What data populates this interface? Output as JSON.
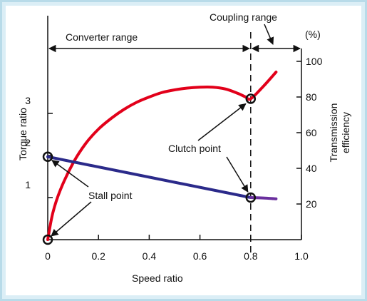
{
  "colors": {
    "background": "#dbeef6",
    "plot_background": "#ffffff",
    "border": "#b8dbe9",
    "efficiency_curve": "#e2001a",
    "torque_curve": "#2b2a8a",
    "coupling_torque": "#6a2f9e",
    "axis": "#111111"
  },
  "chart_data": {
    "type": "line",
    "xlabel": "Speed ratio",
    "ylabel_left": "Torque ratio",
    "ylabel_right": [
      "Transmission",
      "efficiency"
    ],
    "right_unit": "(%)",
    "xlim": [
      0,
      1.0
    ],
    "ylim_left": [
      0,
      3.7
    ],
    "ylim_right": [
      0,
      115
    ],
    "x_ticks": [
      "0",
      "0.2",
      "0.4",
      "0.6",
      "0.8",
      "1.0"
    ],
    "left_ticks": [
      "1",
      "2",
      "3"
    ],
    "right_ticks": [
      "20",
      "40",
      "60",
      "80",
      "100"
    ],
    "grid": false,
    "series": [
      {
        "axis": "right",
        "x": [
          0,
          0.02,
          0.05,
          0.1,
          0.15,
          0.2,
          0.25,
          0.3,
          0.35,
          0.4,
          0.45,
          0.5,
          0.55,
          0.6,
          0.65,
          0.7,
          0.75,
          0.78,
          0.8,
          0.85,
          0.9
        ],
        "values": [
          0,
          15,
          28,
          43,
          54,
          62,
          68,
          73,
          77,
          80,
          82.5,
          84,
          85,
          85.5,
          85.5,
          84.5,
          82,
          80,
          79,
          86,
          94
        ]
      },
      {
        "axis": "left",
        "x": [
          0,
          0.8
        ],
        "values": [
          1.97,
          1.0
        ]
      },
      {
        "axis": "left",
        "x": [
          0.8,
          0.85,
          0.9
        ],
        "values": [
          1.0,
          0.99,
          0.97
        ]
      }
    ],
    "markers": [
      {
        "x": 0,
        "value": 0,
        "axis": "left"
      },
      {
        "x": 0,
        "value": 1.97,
        "axis": "left"
      },
      {
        "x": 0.8,
        "value": 1.0,
        "axis": "left"
      },
      {
        "x": 0.8,
        "value": 79,
        "axis": "right"
      }
    ],
    "coupling_x": 0.8,
    "ranges": [
      {
        "label": "Converter range",
        "from": 0,
        "to": 0.8
      },
      {
        "label": "Coupling range",
        "from": 0.8,
        "to": 1.0
      }
    ],
    "annotations": [
      {
        "text": "Stall point"
      },
      {
        "text": "Clutch point"
      }
    ]
  }
}
